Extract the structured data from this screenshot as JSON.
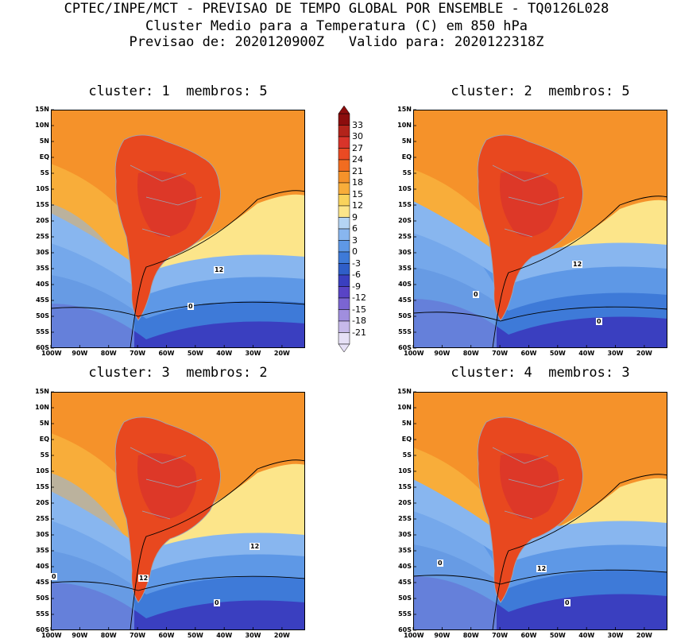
{
  "header": {
    "line1": "CPTEC/INPE/MCT - PREVISAO DE TEMPO GLOBAL POR ENSEMBLE - TQ0126L028",
    "line2": "Cluster Medio para a Temperatura (C) em 850 hPa",
    "line3": "Previsao de: 2020120900Z   Valido para: 2020122318Z"
  },
  "panels": [
    {
      "title": "cluster: 1  membros: 5",
      "contour_labels": [
        "12",
        "0"
      ]
    },
    {
      "title": "cluster: 2  membros: 5",
      "contour_labels": [
        "12",
        "0",
        "0"
      ]
    },
    {
      "title": "cluster: 3  membros: 2",
      "contour_labels": [
        "12",
        "12",
        "0",
        "0"
      ]
    },
    {
      "title": "cluster: 4  membros: 3",
      "contour_labels": [
        "12",
        "0",
        "0"
      ]
    }
  ],
  "lat_labels": [
    "15N",
    "10N",
    "5N",
    "EQ",
    "5S",
    "10S",
    "15S",
    "20S",
    "25S",
    "30S",
    "35S",
    "40S",
    "45S",
    "50S",
    "55S",
    "60S"
  ],
  "lon_labels": [
    "100W",
    "90W",
    "80W",
    "70W",
    "60W",
    "50W",
    "40W",
    "30W",
    "20W"
  ],
  "colorbar": {
    "labels": [
      "33",
      "30",
      "27",
      "24",
      "21",
      "18",
      "15",
      "12",
      "9",
      "6",
      "3",
      "0",
      "-3",
      "-6",
      "-9",
      "-12",
      "-15",
      "-18",
      "-21"
    ],
    "colors": [
      "#8c0d0d",
      "#b3241b",
      "#d9342a",
      "#ea4a23",
      "#f26c20",
      "#f5922a",
      "#f8ad3a",
      "#f9d35c",
      "#fce58a",
      "#b4d4f4",
      "#88b6ef",
      "#5e98e6",
      "#3e7ad8",
      "#2f5ec8",
      "#3a3fc0",
      "#5944c6",
      "#7b65d2",
      "#a08ede",
      "#c6b9ea",
      "#e6e0f6"
    ]
  },
  "colors": {
    "land_hot": "#e8481f",
    "land_hotter": "#d9342a",
    "ocean_warm": "#f5922a",
    "ocean_mid": "#f8ad3a",
    "cool_band": "#fce58a",
    "cold1": "#88b6ef",
    "cold2": "#5e98e6",
    "cold3": "#3e7ad8",
    "cold4": "#3a3fc0"
  }
}
